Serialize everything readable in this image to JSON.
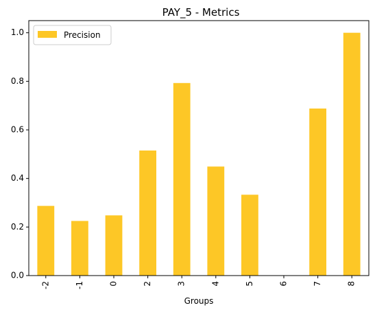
{
  "chart_data": {
    "type": "bar",
    "title": "PAY_5 - Metrics",
    "xlabel": "Groups",
    "ylabel": "",
    "categories": [
      "-2",
      "-1",
      "0",
      "2",
      "3",
      "4",
      "5",
      "6",
      "7",
      "8"
    ],
    "series": [
      {
        "name": "Precision",
        "values": [
          0.287,
          0.225,
          0.248,
          0.515,
          0.793,
          0.449,
          0.333,
          0.0,
          0.688,
          1.0
        ],
        "color": "#fdc726"
      }
    ],
    "ylim": [
      0,
      1.05
    ],
    "yticks": [
      "0.0",
      "0.2",
      "0.4",
      "0.6",
      "0.8",
      "1.0"
    ],
    "grid": false,
    "legend_position": "top-left"
  }
}
